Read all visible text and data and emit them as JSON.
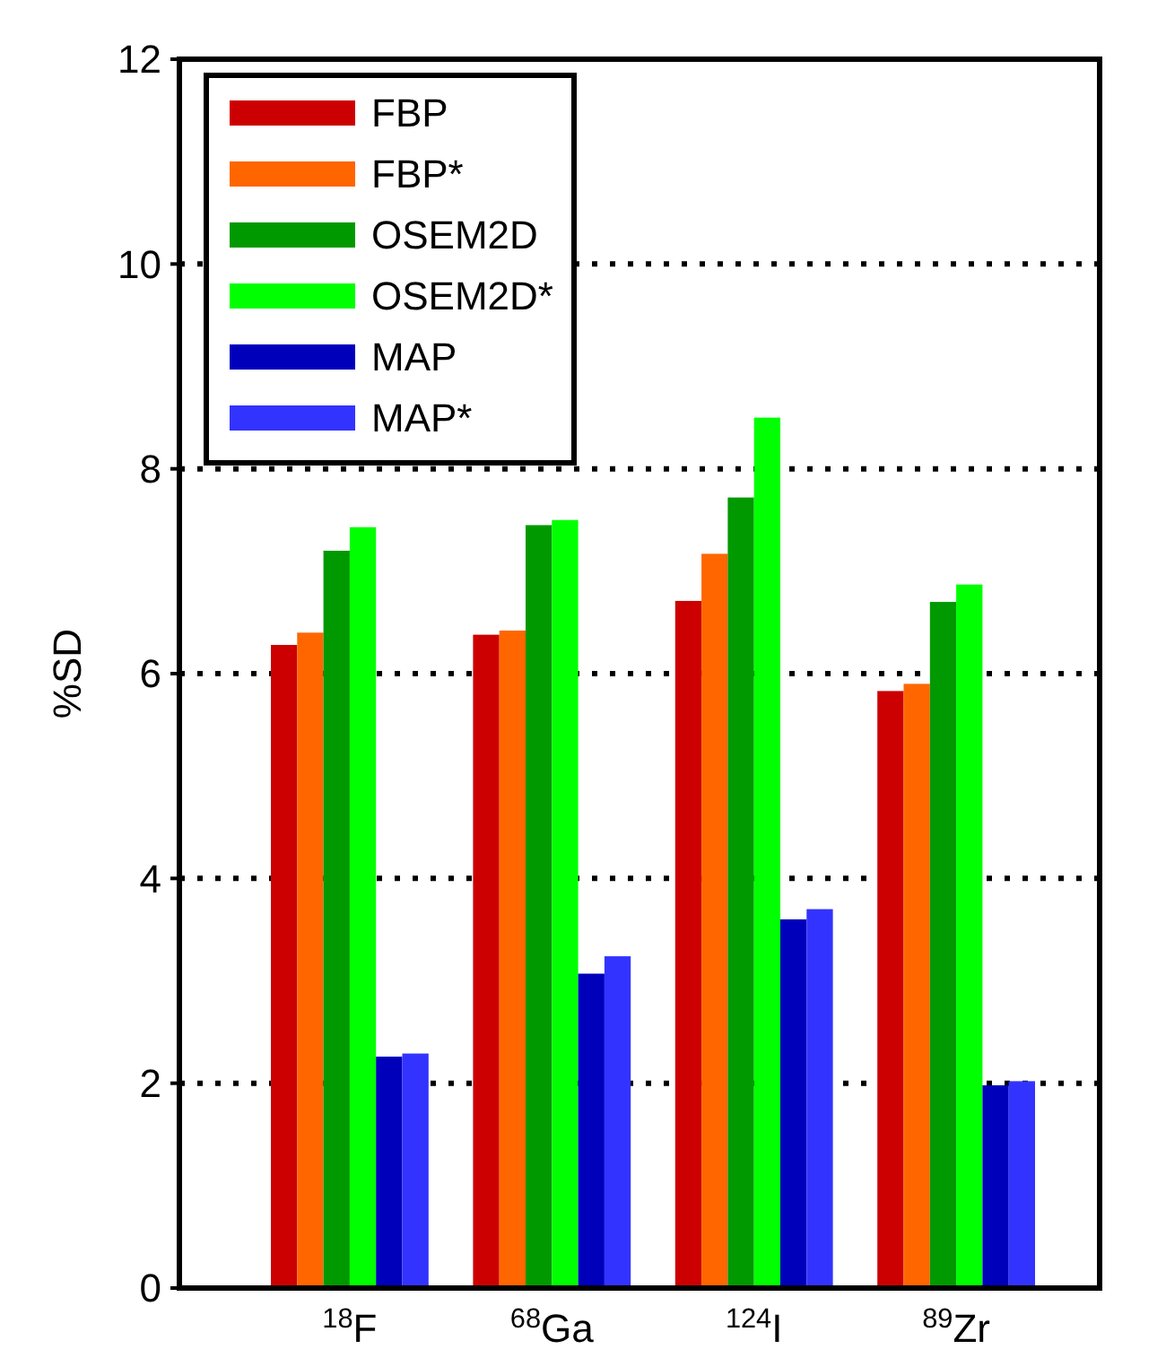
{
  "chart_data": {
    "type": "bar",
    "ylabel": "%SD",
    "categories": [
      "$^{18}$F",
      "$^{68}$Ga",
      "$^{124}$I",
      "$^{89}$Zr"
    ],
    "series": [
      {
        "name": "FBP",
        "color": "#cc0000",
        "values": [
          6.28,
          6.38,
          6.71,
          5.83
        ]
      },
      {
        "name": "FBP*",
        "color": "#ff6600",
        "values": [
          6.4,
          6.42,
          7.17,
          5.9
        ]
      },
      {
        "name": "OSEM2D",
        "color": "#009900",
        "values": [
          7.2,
          7.45,
          7.72,
          6.7
        ]
      },
      {
        "name": "OSEM2D*",
        "color": "#00ff00",
        "values": [
          7.43,
          7.5,
          8.5,
          6.87
        ]
      },
      {
        "name": "MAP",
        "color": "#0000bb",
        "values": [
          2.26,
          3.07,
          3.6,
          1.98
        ]
      },
      {
        "name": "MAP*",
        "color": "#3333ff",
        "values": [
          2.29,
          3.24,
          3.7,
          2.02
        ]
      }
    ],
    "ylim": [
      0,
      12
    ],
    "yticks": [
      0,
      2,
      4,
      6,
      8,
      10,
      12
    ],
    "grid": "y",
    "legend": "top left"
  }
}
